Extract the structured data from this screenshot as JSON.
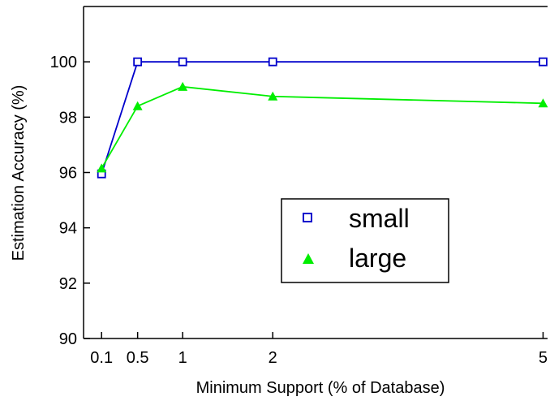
{
  "chart_data": {
    "type": "line",
    "title": "",
    "xlabel": "Minimum Support (% of Database)",
    "ylabel": "Estimation Accuracy (%)",
    "xlim": [
      -0.1,
      5.05
    ],
    "ylim": [
      90,
      102
    ],
    "x_ticks": [
      {
        "value": 0.1,
        "label": "0.1"
      },
      {
        "value": 0.5,
        "label": "0.5"
      },
      {
        "value": 1,
        "label": "1"
      },
      {
        "value": 2,
        "label": "2"
      },
      {
        "value": 5,
        "label": "5"
      }
    ],
    "y_ticks": [
      {
        "value": 90,
        "label": "90"
      },
      {
        "value": 92,
        "label": "92"
      },
      {
        "value": 94,
        "label": "94"
      },
      {
        "value": 96,
        "label": "96"
      },
      {
        "value": 98,
        "label": "98"
      },
      {
        "value": 100,
        "label": "100"
      }
    ],
    "x": [
      0.1,
      0.5,
      1,
      2,
      5
    ],
    "series": [
      {
        "name": "small",
        "values": [
          95.95,
          100,
          100,
          100,
          100
        ],
        "color": "#0000cc",
        "marker": "open-square"
      },
      {
        "name": "large",
        "values": [
          96.15,
          98.4,
          99.1,
          98.75,
          98.5
        ],
        "color": "#00ee00",
        "marker": "filled-triangle"
      }
    ],
    "grid": false,
    "legend_position": "middle-right"
  }
}
